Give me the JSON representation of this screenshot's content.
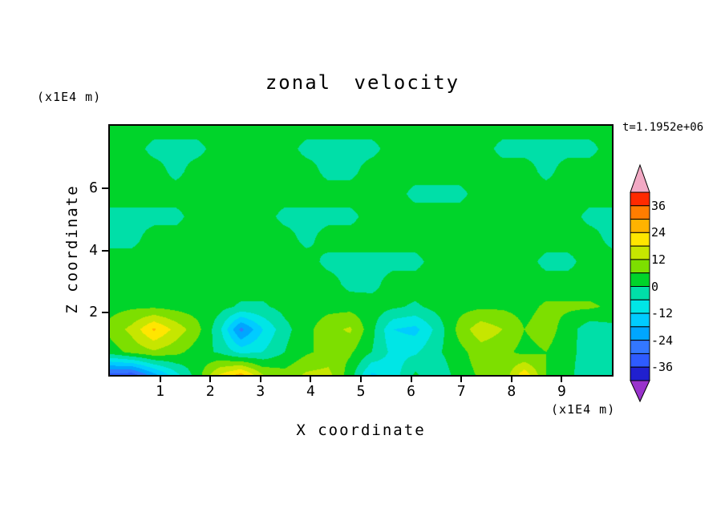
{
  "chart_data": {
    "type": "heatmap",
    "title": "zonal velocity",
    "time_annotation": "t=1.1952e+06",
    "xlabel": "X coordinate",
    "ylabel": "Z coordinate",
    "x_unit_label": "(x1E4 m)",
    "y_unit_label": "(x1E4 m)",
    "x_range": [
      0,
      10
    ],
    "y_range": [
      0,
      8
    ],
    "x_ticks": [
      1,
      2,
      3,
      4,
      5,
      6,
      7,
      8,
      9
    ],
    "y_ticks": [
      2,
      4,
      6
    ],
    "grid_on": false,
    "legend_position": "colorbar-right",
    "colorbar": {
      "orientation": "vertical",
      "tick_values": [
        36,
        24,
        12,
        0,
        -12,
        -24,
        -36
      ],
      "levels": [
        -42,
        -36,
        -30,
        -24,
        -18,
        -12,
        -6,
        0,
        6,
        12,
        18,
        24,
        30,
        36,
        42
      ],
      "band_colors": [
        "#9933cc",
        "#2020cf",
        "#2e5bff",
        "#3377ff",
        "#00a6ff",
        "#00ccff",
        "#00e6e6",
        "#00dfa8",
        "#00d42a",
        "#7ddf00",
        "#c6e600",
        "#ffe600",
        "#ffb300",
        "#ff7d00",
        "#ff2a00",
        "#f2a9c4"
      ]
    },
    "grid": {
      "description": "zonal velocity field on a uniform grid; rows ordered top (z=8) to bottom (z=0), columns left (x=0) to right (x=10); units match colorbar",
      "values": [
        [
          3,
          3,
          3,
          3,
          3,
          3,
          3,
          3,
          3,
          3,
          3,
          3,
          3,
          3,
          3,
          3,
          3,
          3,
          3,
          3,
          3,
          3,
          3,
          3
        ],
        [
          3,
          3,
          -2,
          -2,
          -2,
          3,
          3,
          3,
          3,
          -2,
          -2,
          -2,
          -2,
          3,
          3,
          3,
          3,
          3,
          -2,
          -2,
          -2,
          -2,
          -2,
          3
        ],
        [
          3,
          3,
          3,
          -2,
          3,
          3,
          3,
          3,
          3,
          3,
          -2,
          -2,
          3,
          3,
          3,
          3,
          3,
          3,
          3,
          3,
          -2,
          3,
          3,
          3
        ],
        [
          3,
          3,
          3,
          3,
          3,
          3,
          3,
          3,
          3,
          3,
          3,
          3,
          3,
          3,
          -2,
          -2,
          -2,
          3,
          3,
          3,
          3,
          3,
          3,
          3
        ],
        [
          -2,
          -2,
          -2,
          -2,
          3,
          3,
          3,
          3,
          -2,
          -2,
          -2,
          -2,
          3,
          3,
          3,
          3,
          3,
          3,
          3,
          3,
          3,
          3,
          -2,
          -2
        ],
        [
          -2,
          -2,
          3,
          3,
          3,
          3,
          3,
          3,
          3,
          -2,
          3,
          3,
          3,
          3,
          3,
          3,
          3,
          3,
          3,
          3,
          3,
          3,
          3,
          -2
        ],
        [
          3,
          3,
          3,
          3,
          3,
          3,
          3,
          3,
          3,
          3,
          -2,
          -2,
          -2,
          -2,
          -2,
          3,
          3,
          3,
          3,
          3,
          -2,
          -2,
          3,
          3
        ],
        [
          3,
          3,
          3,
          3,
          3,
          3,
          3,
          3,
          3,
          3,
          3,
          -2,
          -2,
          3,
          3,
          3,
          3,
          3,
          3,
          3,
          3,
          3,
          3,
          3
        ],
        [
          4,
          5,
          5,
          4,
          3,
          2,
          -1,
          -1,
          2,
          3,
          4,
          4,
          3,
          1,
          -1,
          2,
          4,
          5,
          5,
          4,
          7,
          7,
          7,
          5
        ],
        [
          8,
          14,
          25,
          16,
          8,
          -4,
          -26,
          -12,
          -2,
          4,
          10,
          13,
          2,
          -12,
          -14,
          -4,
          8,
          16,
          12,
          6,
          9,
          3,
          -4,
          -2
        ],
        [
          3,
          8,
          11,
          8,
          3,
          -1,
          -8,
          -6,
          0,
          5,
          8,
          7,
          0,
          -8,
          -7,
          -1,
          4,
          9,
          8,
          4,
          6,
          2,
          -3,
          -1
        ],
        [
          -32,
          -33,
          -20,
          -8,
          3,
          18,
          26,
          12,
          8,
          13,
          14,
          3,
          -13,
          -9,
          1,
          -5,
          3,
          7,
          7,
          22,
          6,
          2,
          -5,
          -2
        ]
      ]
    }
  }
}
